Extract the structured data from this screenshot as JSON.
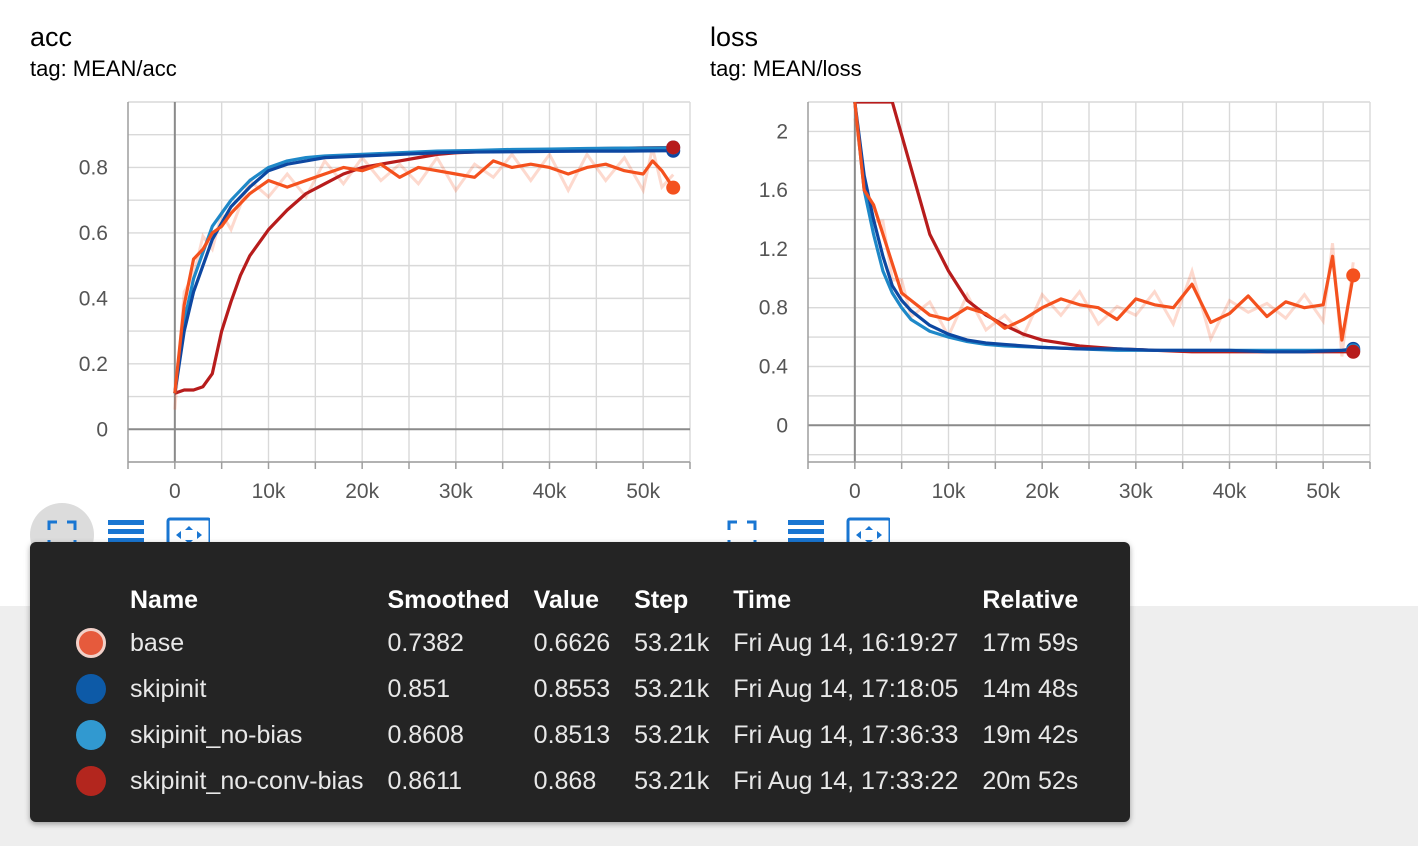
{
  "charts": [
    {
      "id": "acc",
      "title": "acc",
      "tag": "tag: MEAN/acc",
      "chart_data": {
        "type": "line",
        "title": "acc",
        "subtitle": "tag: MEAN/acc",
        "xlabel": "",
        "ylabel": "",
        "xlim": [
          -5000,
          55000
        ],
        "ylim": [
          -0.1,
          1.0
        ],
        "x_ticks": [
          0,
          10000,
          20000,
          30000,
          40000,
          50000
        ],
        "x_tick_labels": [
          "0",
          "10k",
          "20k",
          "30k",
          "40k",
          "50k"
        ],
        "y_ticks": [
          0,
          0.2,
          0.4,
          0.6,
          0.8
        ],
        "y_tick_labels": [
          "0",
          "0.2",
          "0.4",
          "0.6",
          "0.8"
        ],
        "grid": true,
        "series": [
          {
            "name": "base",
            "color": "#f4511e",
            "smoothed": true,
            "x": [
              0,
              1000,
              2000,
              3000,
              4000,
              5000,
              6000,
              8000,
              10000,
              12000,
              14000,
              16000,
              18000,
              20000,
              22000,
              24000,
              26000,
              28000,
              30000,
              32000,
              34000,
              36000,
              38000,
              40000,
              42000,
              44000,
              46000,
              48000,
              50000,
              51000,
              52000,
              53210
            ],
            "y": [
              0.11,
              0.38,
              0.52,
              0.55,
              0.6,
              0.62,
              0.66,
              0.72,
              0.76,
              0.74,
              0.76,
              0.78,
              0.8,
              0.79,
              0.81,
              0.77,
              0.8,
              0.79,
              0.78,
              0.77,
              0.82,
              0.8,
              0.81,
              0.8,
              0.78,
              0.8,
              0.81,
              0.79,
              0.78,
              0.82,
              0.79,
              0.7382
            ]
          },
          {
            "name": "skipinit",
            "color": "#0d47a1",
            "smoothed": true,
            "x": [
              0,
              1000,
              2000,
              4000,
              6000,
              8000,
              10000,
              12000,
              14000,
              16000,
              20000,
              24000,
              28000,
              32000,
              36000,
              40000,
              44000,
              48000,
              52000,
              53210
            ],
            "y": [
              0.11,
              0.3,
              0.42,
              0.58,
              0.68,
              0.74,
              0.79,
              0.81,
              0.82,
              0.83,
              0.835,
              0.84,
              0.845,
              0.847,
              0.848,
              0.849,
              0.85,
              0.85,
              0.851,
              0.851
            ]
          },
          {
            "name": "skipinit_no-bias",
            "color": "#1e88c8",
            "smoothed": true,
            "x": [
              0,
              1000,
              2000,
              4000,
              6000,
              8000,
              10000,
              12000,
              14000,
              16000,
              20000,
              24000,
              28000,
              32000,
              36000,
              40000,
              44000,
              48000,
              52000,
              53210
            ],
            "y": [
              0.11,
              0.33,
              0.46,
              0.62,
              0.7,
              0.76,
              0.8,
              0.82,
              0.83,
              0.835,
              0.84,
              0.845,
              0.85,
              0.852,
              0.855,
              0.856,
              0.858,
              0.859,
              0.86,
              0.8608
            ]
          },
          {
            "name": "skipinit_no-conv-bias",
            "color": "#b71c1c",
            "smoothed": true,
            "x": [
              0,
              1000,
              2000,
              3000,
              4000,
              5000,
              6000,
              7000,
              8000,
              10000,
              12000,
              14000,
              16000,
              18000,
              20000,
              22000,
              24000,
              26000,
              28000,
              30000,
              34000,
              38000,
              42000,
              46000,
              50000,
              53210
            ],
            "y": [
              0.11,
              0.12,
              0.12,
              0.13,
              0.17,
              0.3,
              0.39,
              0.47,
              0.53,
              0.61,
              0.67,
              0.72,
              0.75,
              0.78,
              0.8,
              0.81,
              0.82,
              0.83,
              0.84,
              0.845,
              0.85,
              0.853,
              0.856,
              0.858,
              0.86,
              0.8611
            ]
          }
        ]
      }
    },
    {
      "id": "loss",
      "title": "loss",
      "tag": "tag: MEAN/loss",
      "chart_data": {
        "type": "line",
        "title": "loss",
        "subtitle": "tag: MEAN/loss",
        "xlabel": "",
        "ylabel": "",
        "xlim": [
          -5000,
          55000
        ],
        "ylim": [
          -0.25,
          2.2
        ],
        "x_ticks": [
          0,
          10000,
          20000,
          30000,
          40000,
          50000
        ],
        "x_tick_labels": [
          "0",
          "10k",
          "20k",
          "30k",
          "40k",
          "50k"
        ],
        "y_ticks": [
          0,
          0.4,
          0.8,
          1.2,
          1.6,
          2.0
        ],
        "y_tick_labels": [
          "0",
          "0.4",
          "0.8",
          "1.2",
          "1.6",
          "2"
        ],
        "grid": true,
        "series": [
          {
            "name": "base",
            "color": "#f4511e",
            "smoothed": true,
            "x": [
              0,
              1000,
              2000,
              3000,
              4000,
              5000,
              6000,
              8000,
              10000,
              12000,
              14000,
              16000,
              18000,
              20000,
              22000,
              24000,
              26000,
              28000,
              30000,
              32000,
              34000,
              36000,
              38000,
              40000,
              42000,
              44000,
              46000,
              48000,
              50000,
              51000,
              52000,
              53210
            ],
            "y": [
              2.2,
              1.6,
              1.5,
              1.3,
              1.1,
              0.9,
              0.85,
              0.75,
              0.72,
              0.8,
              0.76,
              0.66,
              0.72,
              0.8,
              0.86,
              0.82,
              0.8,
              0.72,
              0.86,
              0.82,
              0.8,
              0.96,
              0.7,
              0.76,
              0.88,
              0.74,
              0.84,
              0.8,
              0.82,
              1.15,
              0.58,
              1.02
            ]
          },
          {
            "name": "skipinit",
            "color": "#0d47a1",
            "smoothed": true,
            "x": [
              0,
              1000,
              2000,
              3000,
              4000,
              5000,
              6000,
              8000,
              10000,
              12000,
              14000,
              16000,
              20000,
              24000,
              28000,
              32000,
              36000,
              40000,
              44000,
              48000,
              52000,
              53210
            ],
            "y": [
              2.2,
              1.7,
              1.4,
              1.15,
              0.95,
              0.85,
              0.78,
              0.68,
              0.62,
              0.58,
              0.56,
              0.55,
              0.53,
              0.52,
              0.52,
              0.51,
              0.51,
              0.51,
              0.5,
              0.5,
              0.51,
              0.52
            ]
          },
          {
            "name": "skipinit_no-bias",
            "color": "#1e88c8",
            "smoothed": true,
            "x": [
              0,
              1000,
              2000,
              3000,
              4000,
              5000,
              6000,
              8000,
              10000,
              12000,
              14000,
              16000,
              20000,
              24000,
              28000,
              32000,
              36000,
              40000,
              44000,
              48000,
              52000,
              53210
            ],
            "y": [
              2.2,
              1.6,
              1.3,
              1.05,
              0.9,
              0.8,
              0.72,
              0.64,
              0.6,
              0.57,
              0.55,
              0.54,
              0.53,
              0.52,
              0.51,
              0.51,
              0.51,
              0.51,
              0.51,
              0.51,
              0.51,
              0.51
            ]
          },
          {
            "name": "skipinit_no-conv-bias",
            "color": "#b71c1c",
            "smoothed": true,
            "x": [
              0,
              2000,
              4000,
              6000,
              8000,
              10000,
              12000,
              14000,
              16000,
              18000,
              20000,
              24000,
              28000,
              32000,
              36000,
              40000,
              44000,
              48000,
              52000,
              53210
            ],
            "y": [
              2.2,
              2.2,
              2.2,
              1.75,
              1.3,
              1.05,
              0.85,
              0.75,
              0.68,
              0.62,
              0.58,
              0.54,
              0.52,
              0.51,
              0.5,
              0.5,
              0.5,
              0.5,
              0.5,
              0.5
            ]
          }
        ]
      }
    }
  ],
  "tooltip": {
    "headers": [
      "Name",
      "Smoothed",
      "Value",
      "Step",
      "Time",
      "Relative"
    ],
    "rows": [
      {
        "name": "base",
        "color": "#e65a3c",
        "smoothed": "0.7382",
        "value": "0.6626",
        "step": "53.21k",
        "time": "Fri Aug 14, 16:19:27",
        "relative": "17m 59s"
      },
      {
        "name": "skipinit",
        "color": "#0d5aa7",
        "smoothed": "0.851",
        "value": "0.8553",
        "step": "53.21k",
        "time": "Fri Aug 14, 17:18:05",
        "relative": "14m 48s"
      },
      {
        "name": "skipinit_no-bias",
        "color": "#3199d0",
        "smoothed": "0.8608",
        "value": "0.8513",
        "step": "53.21k",
        "time": "Fri Aug 14, 17:36:33",
        "relative": "19m 42s"
      },
      {
        "name": "skipinit_no-conv-bias",
        "color": "#b3261e",
        "smoothed": "0.8611",
        "value": "0.868",
        "step": "53.21k",
        "time": "Fri Aug 14, 17:33:22",
        "relative": "20m 52s"
      }
    ]
  },
  "icons": {
    "expand": "fullscreen-icon",
    "log_scale": "log-scale-icon",
    "fit_domain": "fit-domain-icon"
  },
  "accent_color": "#1976d2"
}
